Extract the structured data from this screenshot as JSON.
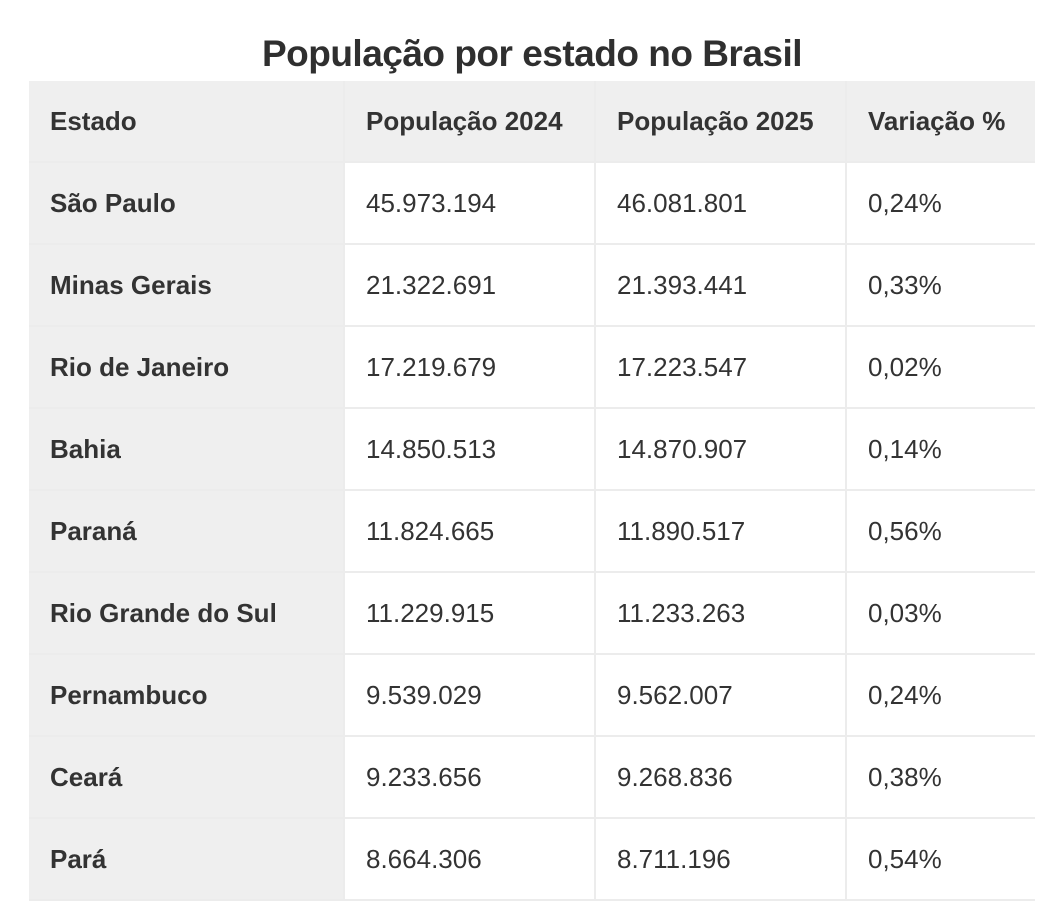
{
  "chart_data": {
    "type": "table",
    "title": "População por estado no Brasil",
    "columns": [
      "Estado",
      "População 2024",
      "População 2025",
      "Variação %"
    ],
    "rows": [
      [
        "São Paulo",
        "45.973.194",
        "46.081.801",
        "0,24%"
      ],
      [
        "Minas Gerais",
        "21.322.691",
        "21.393.441",
        "0,33%"
      ],
      [
        "Rio de Janeiro",
        "17.219.679",
        "17.223.547",
        "0,02%"
      ],
      [
        "Bahia",
        "14.850.513",
        "14.870.907",
        "0,14%"
      ],
      [
        "Paraná",
        "11.824.665",
        "11.890.517",
        "0,56%"
      ],
      [
        "Rio Grande do Sul",
        "11.229.915",
        "11.233.263",
        "0,03%"
      ],
      [
        "Pernambuco",
        "9.539.029",
        "9.562.007",
        "0,24%"
      ],
      [
        "Ceará",
        "9.233.656",
        "9.268.836",
        "0,38%"
      ],
      [
        "Pará",
        "8.664.306",
        "8.711.196",
        "0,54%"
      ]
    ]
  }
}
